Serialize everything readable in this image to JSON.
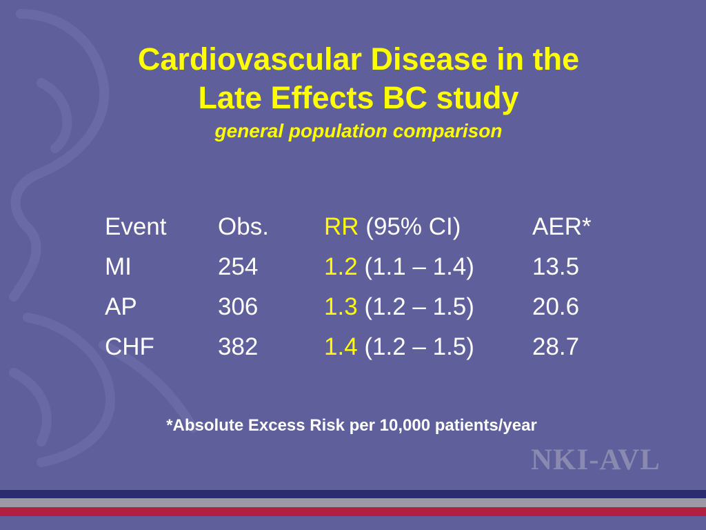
{
  "title": {
    "line1": "Cardiovascular Disease in the",
    "line2": "Late Effects BC study",
    "subtitle": "general population comparison"
  },
  "table": {
    "header": {
      "event": "Event",
      "obs": "Obs.",
      "rr": "RR",
      "ci": " (95% CI)",
      "aer": "AER*"
    },
    "rows": [
      {
        "event": "MI",
        "obs": "254",
        "rr": "1.2",
        "ci": " (1.1 – 1.4)",
        "aer": "13.5"
      },
      {
        "event": "AP",
        "obs": "306",
        "rr": "1.3",
        "ci": " (1.2 – 1.5)",
        "aer": "20.6"
      },
      {
        "event": "CHF",
        "obs": "382",
        "rr": "1.4",
        "ci": " (1.2 – 1.5)",
        "aer": "28.7"
      }
    ]
  },
  "footnote": "*Absolute Excess Risk per 10,000 patients/year",
  "logo": "NKI-AVL",
  "colors": {
    "background": "#5f5f9c",
    "highlight": "#ffff00",
    "stripe_navy": "#2b2b70",
    "stripe_gray": "#9a9aa6",
    "stripe_red": "#b02040"
  },
  "icons": {
    "background_art": "faint-profile-outline"
  }
}
